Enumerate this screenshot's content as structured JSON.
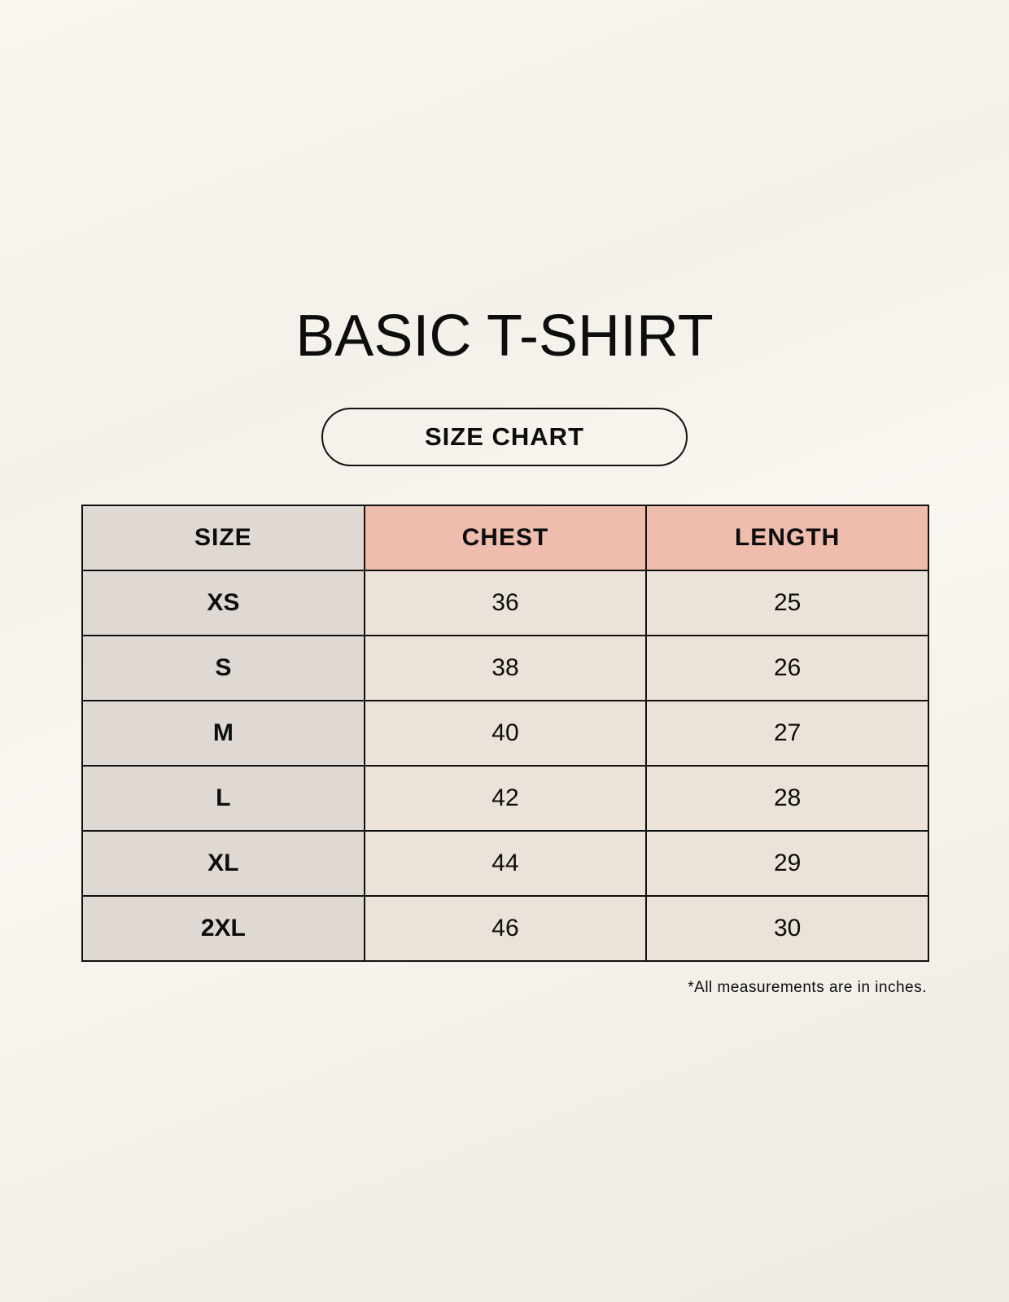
{
  "title": "BASIC T-SHIRT",
  "subtitle": "SIZE CHART",
  "table": {
    "headers": [
      "SIZE",
      "CHEST",
      "LENGTH"
    ],
    "rows": [
      [
        "XS",
        "36",
        "25"
      ],
      [
        "S",
        "38",
        "26"
      ],
      [
        "M",
        "40",
        "27"
      ],
      [
        "L",
        "42",
        "28"
      ],
      [
        "XL",
        "44",
        "29"
      ],
      [
        "2XL",
        "46",
        "30"
      ]
    ]
  },
  "note": "*All measurements are in inches.",
  "colors": {
    "size_column": "#e0d9d3",
    "measure_header": "#eebdae",
    "value_cells": "#ebe3d9"
  }
}
